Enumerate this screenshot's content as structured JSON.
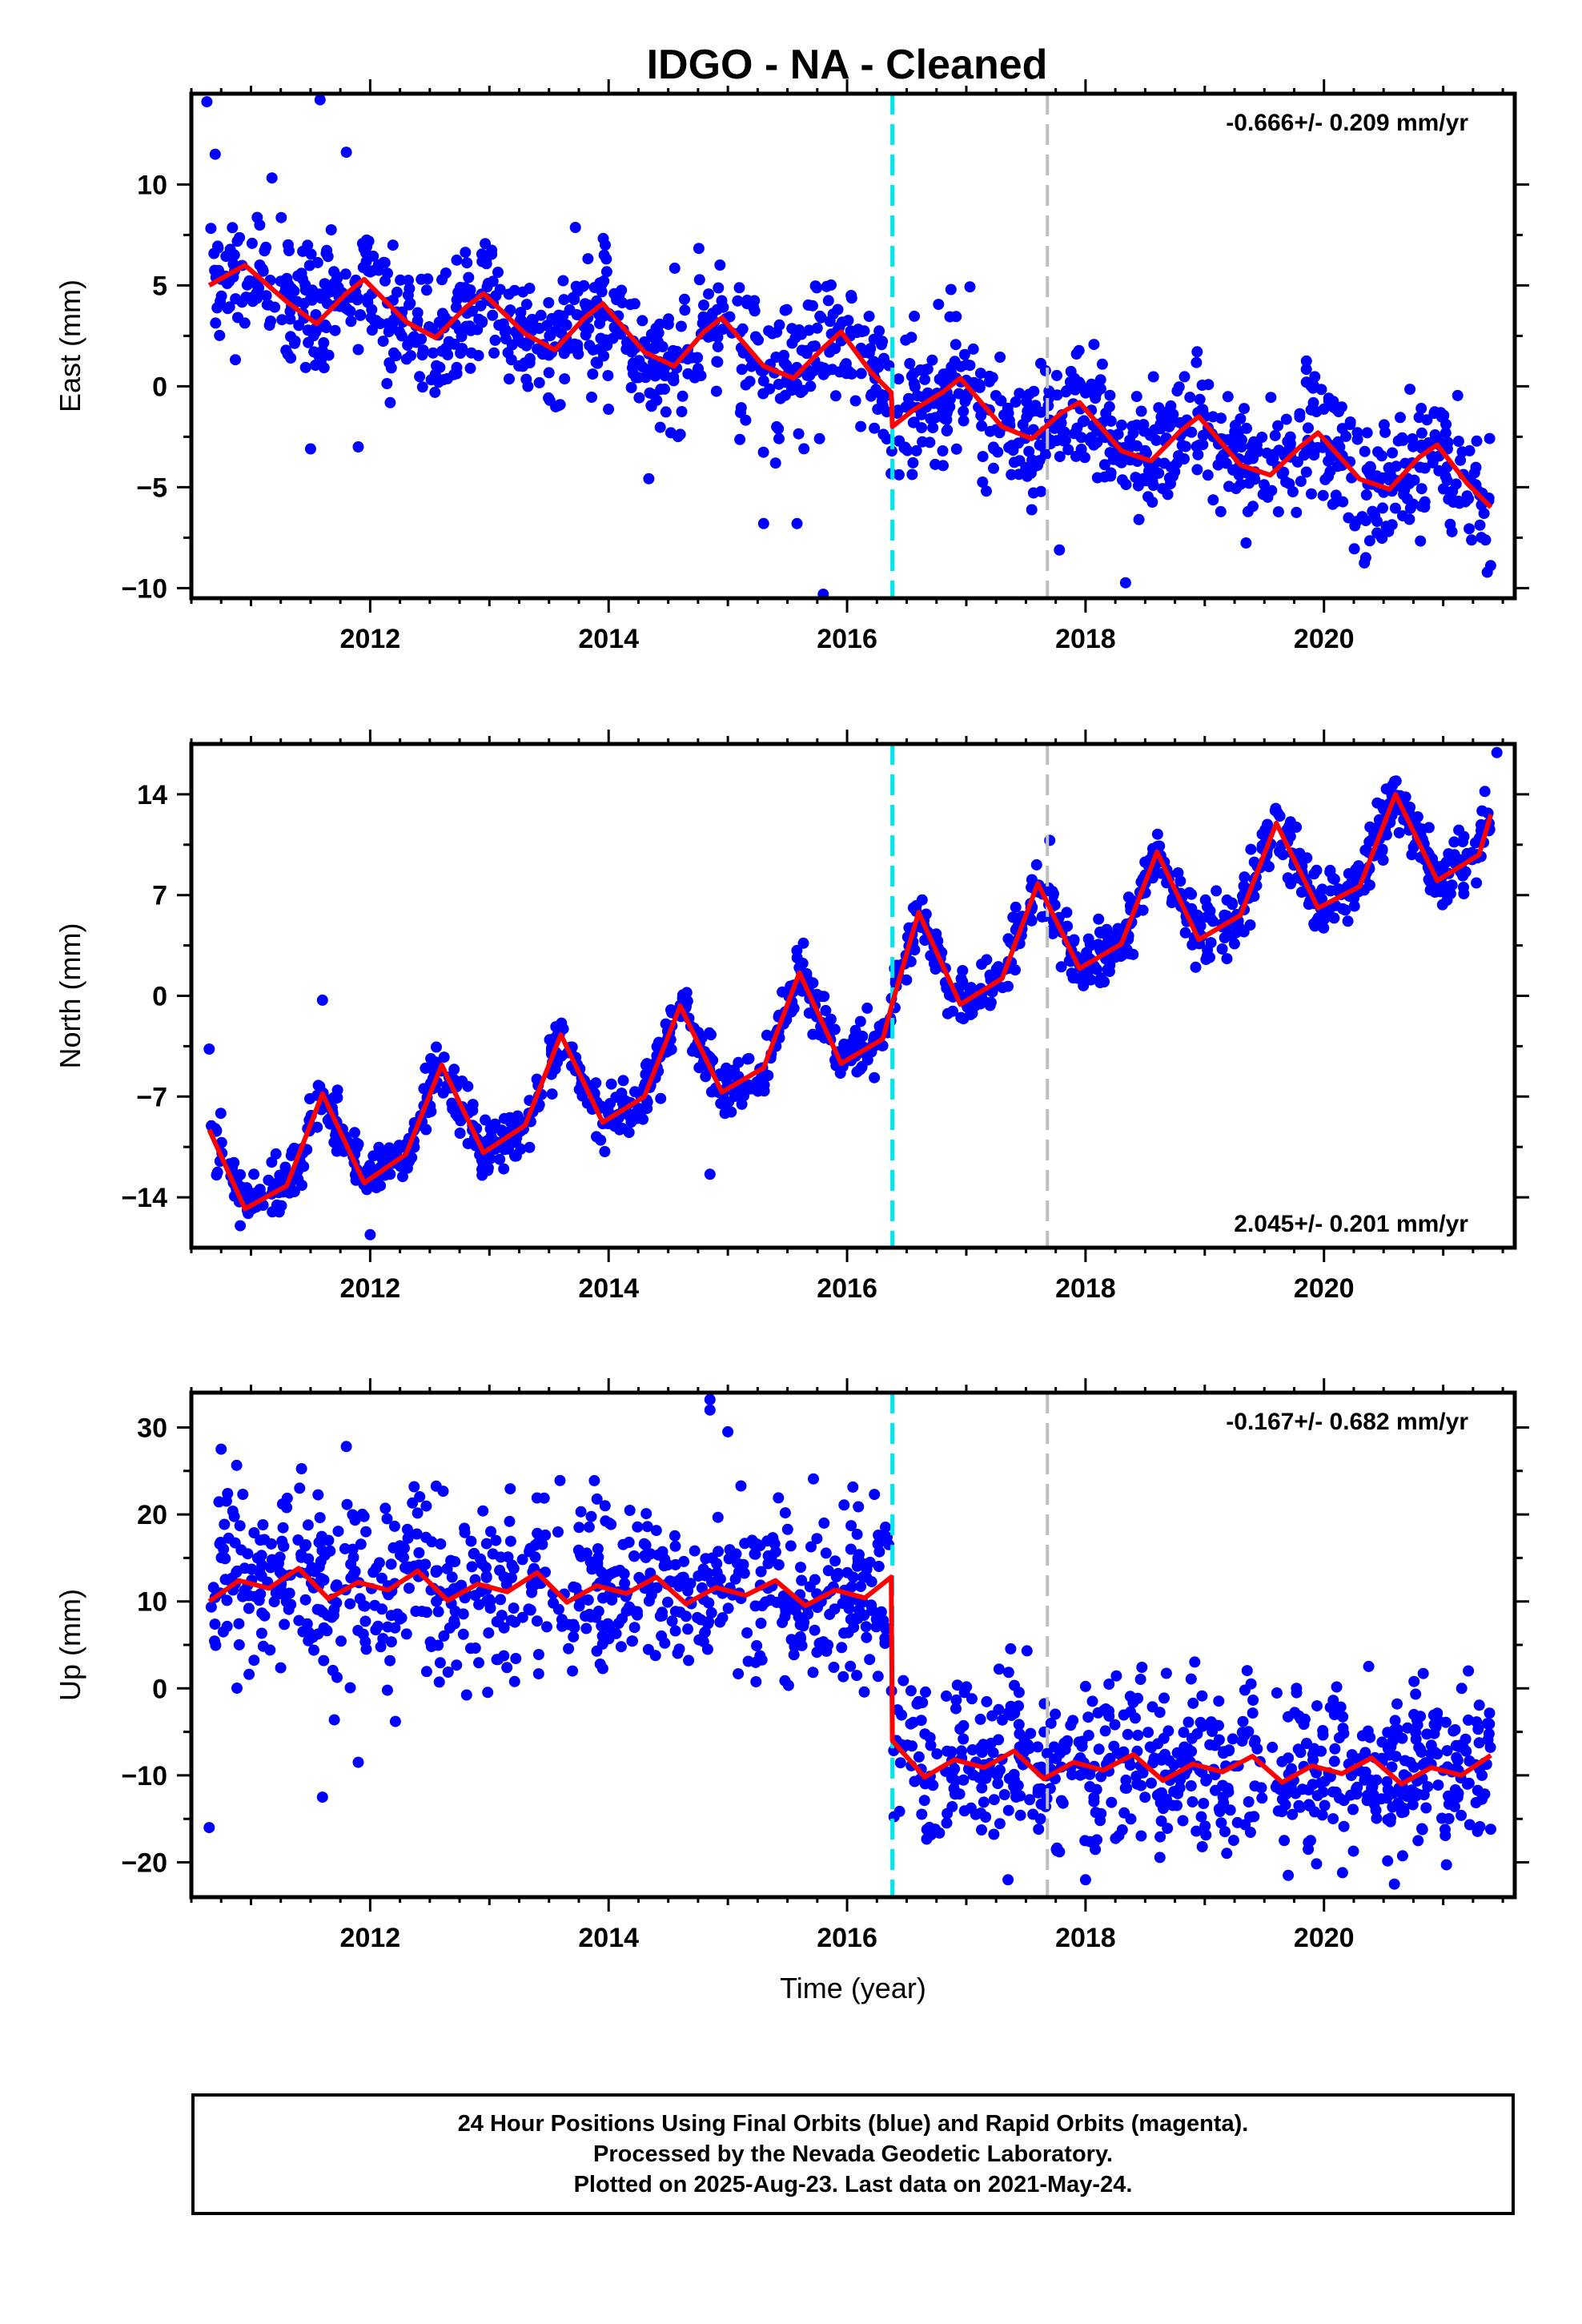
{
  "title": "IDGO  - NA - Cleaned",
  "colors": {
    "points": "#0000ff",
    "fit": "#ff0000",
    "antenna_change": "#00e5ee",
    "other_event": "#bebebe"
  },
  "events": {
    "antenna_change_year": 2016.38,
    "other_event_year": 2017.68
  },
  "chart_data": [
    {
      "type": "scatter",
      "ylabel": "East (mm)",
      "xlabel": "",
      "xlim": [
        2010.5,
        2021.6
      ],
      "ylim": [
        -10.5,
        14.5
      ],
      "xticks": [
        2012,
        2014,
        2016,
        2018,
        2020
      ],
      "yticks": [
        -10,
        -5,
        0,
        5,
        10
      ],
      "rate_text": "-0.666+/- 0.209 mm/yr",
      "rate_position": "top-right",
      "series": [
        {
          "kind": "observations",
          "color": "blue",
          "noise_sd": 1.6,
          "x_range": [
            2010.65,
            2021.4
          ],
          "count": 1400,
          "outliers": [
            [
              2010.63,
              14.1
            ],
            [
              2011.58,
              14.2
            ],
            [
              2010.7,
              11.5
            ],
            [
              2011.8,
              11.6
            ],
            [
              2015.3,
              -6.8
            ],
            [
              2015.58,
              -6.8
            ],
            [
              2015.8,
              -10.3
            ],
            [
              2015.4,
              -3.8
            ],
            [
              2011.5,
              -3.1
            ],
            [
              2011.9,
              -3.0
            ]
          ]
        },
        {
          "kind": "model",
          "color": "red",
          "label": "model fit",
          "points": [
            [
              2010.65,
              5.0
            ],
            [
              2010.95,
              6.0
            ],
            [
              2011.3,
              4.2
            ],
            [
              2011.55,
              3.1
            ],
            [
              2011.8,
              4.6
            ],
            [
              2011.95,
              5.3
            ],
            [
              2012.3,
              3.2
            ],
            [
              2012.55,
              2.4
            ],
            [
              2012.8,
              3.9
            ],
            [
              2012.95,
              4.6
            ],
            [
              2013.3,
              2.6
            ],
            [
              2013.55,
              1.8
            ],
            [
              2013.8,
              3.4
            ],
            [
              2013.95,
              4.1
            ],
            [
              2014.3,
              1.7
            ],
            [
              2014.55,
              1.0
            ],
            [
              2014.8,
              2.7
            ],
            [
              2014.95,
              3.4
            ],
            [
              2015.3,
              1.0
            ],
            [
              2015.55,
              0.4
            ],
            [
              2015.8,
              1.9
            ],
            [
              2015.95,
              2.7
            ],
            [
              2016.2,
              0.7
            ],
            [
              2016.37,
              -0.3
            ],
            [
              2016.38,
              -2.0
            ],
            [
              2016.55,
              -1.2
            ],
            [
              2016.8,
              -0.3
            ],
            [
              2016.95,
              0.4
            ],
            [
              2017.3,
              -2.0
            ],
            [
              2017.55,
              -2.6
            ],
            [
              2017.8,
              -1.3
            ],
            [
              2017.95,
              -0.8
            ],
            [
              2018.3,
              -3.2
            ],
            [
              2018.55,
              -3.7
            ],
            [
              2018.8,
              -2.2
            ],
            [
              2018.95,
              -1.5
            ],
            [
              2019.3,
              -3.9
            ],
            [
              2019.55,
              -4.4
            ],
            [
              2019.8,
              -3.0
            ],
            [
              2019.95,
              -2.3
            ],
            [
              2020.3,
              -4.6
            ],
            [
              2020.55,
              -5.1
            ],
            [
              2020.8,
              -3.5
            ],
            [
              2020.95,
              -2.9
            ],
            [
              2021.2,
              -4.8
            ],
            [
              2021.4,
              -6.0
            ]
          ]
        }
      ]
    },
    {
      "type": "scatter",
      "ylabel": "North (mm)",
      "xlabel": "",
      "xlim": [
        2010.5,
        2021.6
      ],
      "ylim": [
        -17.5,
        17.5
      ],
      "xticks": [
        2012,
        2014,
        2016,
        2018,
        2020
      ],
      "yticks": [
        -14,
        -7,
        0,
        7,
        14
      ],
      "rate_text": "2.045+/- 0.201 mm/yr",
      "rate_position": "bottom-right",
      "series": [
        {
          "kind": "observations",
          "color": "blue",
          "noise_sd": 1.0,
          "x_range": [
            2010.65,
            2021.4
          ],
          "count": 1400,
          "outliers": [
            [
              2011.6,
              -0.3
            ],
            [
              2014.85,
              -12.4
            ],
            [
              2010.65,
              -3.7
            ],
            [
              2021.45,
              16.9
            ],
            [
              2012.0,
              -16.6
            ],
            [
              2017.7,
              10.8
            ]
          ]
        },
        {
          "kind": "model",
          "color": "red",
          "label": "model fit",
          "points": [
            [
              2010.65,
              -9.3
            ],
            [
              2010.95,
              -14.8
            ],
            [
              2011.3,
              -13.2
            ],
            [
              2011.6,
              -6.8
            ],
            [
              2011.95,
              -13.0
            ],
            [
              2012.3,
              -11.0
            ],
            [
              2012.6,
              -4.8
            ],
            [
              2012.95,
              -10.9
            ],
            [
              2013.3,
              -9.0
            ],
            [
              2013.6,
              -2.7
            ],
            [
              2013.95,
              -8.8
            ],
            [
              2014.3,
              -7.0
            ],
            [
              2014.6,
              -0.7
            ],
            [
              2014.95,
              -6.7
            ],
            [
              2015.3,
              -5.0
            ],
            [
              2015.6,
              1.6
            ],
            [
              2015.95,
              -4.7
            ],
            [
              2016.3,
              -3.0
            ],
            [
              2016.38,
              -0.5
            ],
            [
              2016.6,
              5.8
            ],
            [
              2016.95,
              -0.6
            ],
            [
              2017.3,
              1.2
            ],
            [
              2017.6,
              7.8
            ],
            [
              2017.95,
              1.9
            ],
            [
              2018.3,
              3.6
            ],
            [
              2018.6,
              10.0
            ],
            [
              2018.95,
              3.9
            ],
            [
              2019.3,
              5.6
            ],
            [
              2019.6,
              12.0
            ],
            [
              2019.95,
              6.1
            ],
            [
              2020.3,
              7.6
            ],
            [
              2020.6,
              14.0
            ],
            [
              2020.95,
              8.0
            ],
            [
              2021.3,
              9.8
            ],
            [
              2021.4,
              12.6
            ]
          ]
        }
      ]
    },
    {
      "type": "scatter",
      "ylabel": "Up (mm)",
      "xlabel": "Time (year)",
      "xlim": [
        2010.5,
        2021.6
      ],
      "ylim": [
        -24,
        34
      ],
      "xticks": [
        2012,
        2014,
        2016,
        2018,
        2020
      ],
      "yticks": [
        -20,
        -10,
        0,
        10,
        20,
        30
      ],
      "rate_text": "-0.167+/- 0.682 mm/yr",
      "rate_position": "top-right",
      "series": [
        {
          "kind": "observations",
          "color": "blue",
          "noise_sd": 4.8,
          "x_range": [
            2010.65,
            2021.4
          ],
          "count": 1400,
          "outliers": [
            [
              2014.85,
              33.2
            ],
            [
              2014.85,
              32.0
            ],
            [
              2015.0,
              29.5
            ],
            [
              2010.65,
              -16.0
            ],
            [
              2011.6,
              -12.5
            ],
            [
              2011.9,
              -8.5
            ],
            [
              2010.75,
              27.5
            ],
            [
              2011.8,
              27.8
            ],
            [
              2017.35,
              -22.0
            ],
            [
              2018.0,
              -22.0
            ],
            [
              2019.7,
              -21.5
            ]
          ]
        },
        {
          "kind": "model",
          "color": "red",
          "label": "model fit",
          "points": [
            [
              2010.65,
              10.0
            ],
            [
              2010.9,
              12.4
            ],
            [
              2011.15,
              11.5
            ],
            [
              2011.4,
              13.8
            ],
            [
              2011.65,
              10.3
            ],
            [
              2011.9,
              12.2
            ],
            [
              2012.15,
              11.3
            ],
            [
              2012.4,
              13.5
            ],
            [
              2012.65,
              10.1
            ],
            [
              2012.9,
              12.0
            ],
            [
              2013.15,
              11.1
            ],
            [
              2013.4,
              13.3
            ],
            [
              2013.65,
              9.9
            ],
            [
              2013.9,
              11.8
            ],
            [
              2014.15,
              10.9
            ],
            [
              2014.4,
              12.8
            ],
            [
              2014.65,
              9.7
            ],
            [
              2014.9,
              11.6
            ],
            [
              2015.15,
              10.7
            ],
            [
              2015.4,
              12.4
            ],
            [
              2015.65,
              9.5
            ],
            [
              2015.9,
              11.3
            ],
            [
              2016.15,
              10.4
            ],
            [
              2016.37,
              12.8
            ],
            [
              2016.38,
              -6.0
            ],
            [
              2016.65,
              -10.2
            ],
            [
              2016.9,
              -8.2
            ],
            [
              2017.15,
              -9.1
            ],
            [
              2017.4,
              -7.2
            ],
            [
              2017.65,
              -10.4
            ],
            [
              2017.9,
              -8.5
            ],
            [
              2018.15,
              -9.4
            ],
            [
              2018.4,
              -7.6
            ],
            [
              2018.65,
              -10.6
            ],
            [
              2018.9,
              -8.7
            ],
            [
              2019.15,
              -9.6
            ],
            [
              2019.4,
              -7.8
            ],
            [
              2019.65,
              -10.8
            ],
            [
              2019.9,
              -8.9
            ],
            [
              2020.15,
              -9.8
            ],
            [
              2020.4,
              -8.0
            ],
            [
              2020.65,
              -11.0
            ],
            [
              2020.9,
              -9.1
            ],
            [
              2021.15,
              -10.0
            ],
            [
              2021.4,
              -7.7
            ]
          ]
        }
      ]
    }
  ],
  "footer": {
    "line1": "24 Hour Positions Using Final Orbits (blue) and Rapid Orbits (magenta).",
    "line2": "Processed by the Nevada Geodetic Laboratory.",
    "line3": "Plotted on 2025-Aug-23. Last data on 2021-May-24."
  }
}
